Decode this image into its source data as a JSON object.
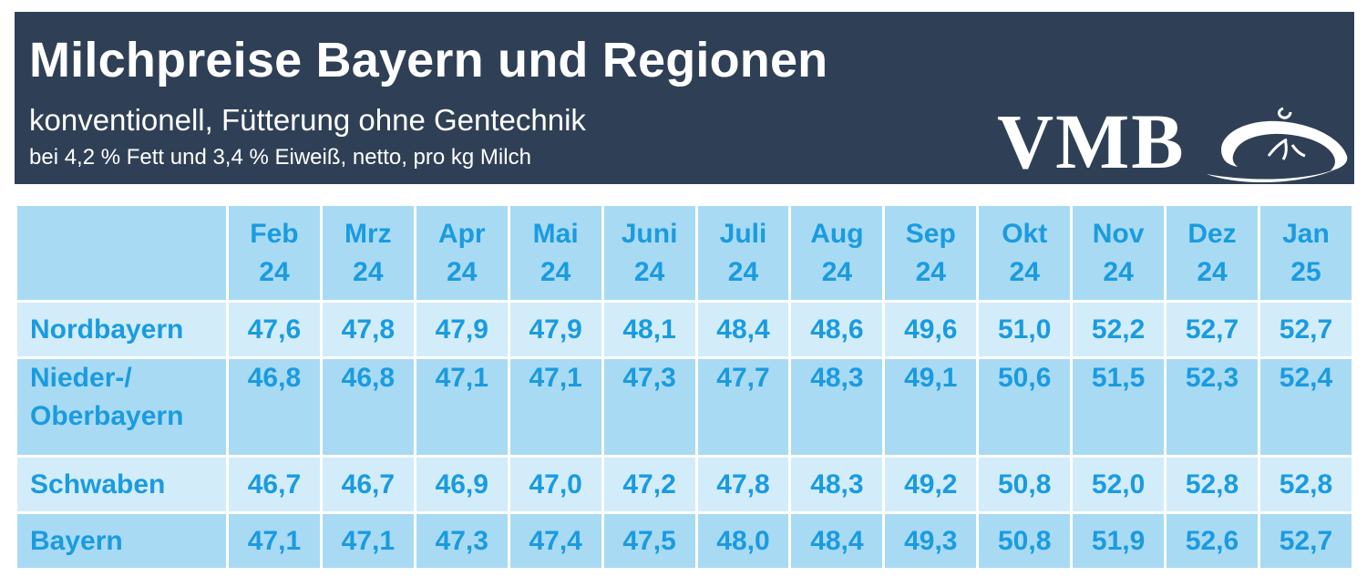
{
  "header": {
    "title": "Milchpreise Bayern und Regionen",
    "subtitle": "konventionell, Fütterung ohne Gentechnik",
    "note": "bei 4,2 % Fett und 3,4 % Eiweiß, netto, pro kg Milch",
    "logo_text": "VMB"
  },
  "colors": {
    "header_bg": "#2f4056",
    "text_accent": "#1a9be0",
    "row_dark": "#a8daf4",
    "row_light": "#d2ecfa"
  },
  "chart_data": {
    "type": "table",
    "title": "Milchpreise Bayern und Regionen",
    "columns": [
      {
        "month": "Feb",
        "year": "24"
      },
      {
        "month": "Mrz",
        "year": "24"
      },
      {
        "month": "Apr",
        "year": "24"
      },
      {
        "month": "Mai",
        "year": "24"
      },
      {
        "month": "Juni",
        "year": "24"
      },
      {
        "month": "Juli",
        "year": "24"
      },
      {
        "month": "Aug",
        "year": "24"
      },
      {
        "month": "Sep",
        "year": "24"
      },
      {
        "month": "Okt",
        "year": "24"
      },
      {
        "month": "Nov",
        "year": "24"
      },
      {
        "month": "Dez",
        "year": "24"
      },
      {
        "month": "Jan",
        "year": "25"
      }
    ],
    "rows": [
      {
        "region": [
          "Nordbayern"
        ],
        "values": [
          "47,6",
          "47,8",
          "47,9",
          "47,9",
          "48,1",
          "48,4",
          "48,6",
          "49,6",
          "51,0",
          "52,2",
          "52,7",
          "52,7"
        ]
      },
      {
        "region": [
          "Nieder-/",
          "Oberbayern"
        ],
        "values": [
          "46,8",
          "46,8",
          "47,1",
          "47,1",
          "47,3",
          "47,7",
          "48,3",
          "49,1",
          "50,6",
          "51,5",
          "52,3",
          "52,4"
        ]
      },
      {
        "region": [
          "Schwaben"
        ],
        "values": [
          "46,7",
          "46,7",
          "46,9",
          "47,0",
          "47,2",
          "47,8",
          "48,3",
          "49,2",
          "50,8",
          "52,0",
          "52,8",
          "52,8"
        ]
      },
      {
        "region": [
          "Bayern"
        ],
        "values": [
          "47,1",
          "47,1",
          "47,3",
          "47,4",
          "47,5",
          "48,0",
          "48,4",
          "49,3",
          "50,8",
          "51,9",
          "52,6",
          "52,7"
        ]
      }
    ]
  }
}
